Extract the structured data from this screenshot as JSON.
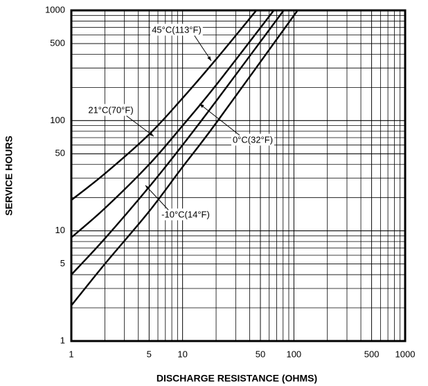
{
  "chart_data": {
    "type": "line",
    "xlabel": "DISCHARGE RESISTANCE (OHMS)",
    "ylabel": "SERVICE HOURS",
    "xscale": "log",
    "yscale": "log",
    "xlim": [
      1,
      1000
    ],
    "ylim": [
      1,
      1000
    ],
    "xticks": [
      1,
      5,
      10,
      50,
      100,
      500,
      1000
    ],
    "yticks": [
      1,
      5,
      10,
      50,
      100,
      500,
      1000
    ],
    "grid": true,
    "minor_grid": true,
    "series": [
      {
        "name": "45°C(113°F)",
        "color": "#000000",
        "x": [
          1,
          2,
          5,
          10,
          20,
          46
        ],
        "values": [
          19,
          33,
          75,
          160,
          360,
          1000
        ]
      },
      {
        "name": "21°C(70°F)",
        "color": "#000000",
        "x": [
          1,
          2,
          5,
          10,
          20,
          66
        ],
        "values": [
          8.7,
          16,
          40,
          90,
          210,
          1000
        ]
      },
      {
        "name": "0°C(32°F)",
        "color": "#000000",
        "x": [
          1,
          2,
          5,
          10,
          20,
          81
        ],
        "values": [
          4,
          8.5,
          25,
          60,
          150,
          1000
        ]
      },
      {
        "name": "-10°C(14°F)",
        "color": "#000000",
        "x": [
          1,
          2,
          5,
          10,
          20,
          108
        ],
        "values": [
          2.1,
          5,
          15,
          38,
          95,
          1000
        ]
      }
    ]
  }
}
